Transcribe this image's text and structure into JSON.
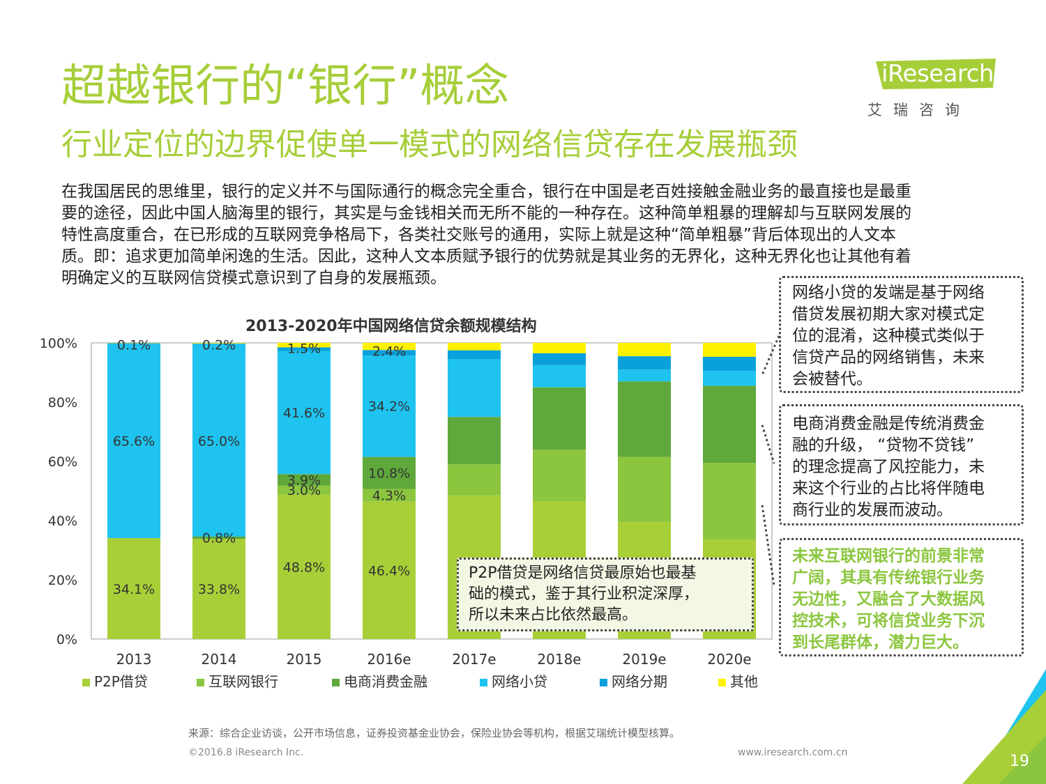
{
  "header": {
    "title": "超越银行的“银行”概念",
    "subtitle": "行业定位的边界促使单一模式的网络信贷存在发展瓶颈",
    "logo_text": "iResearch",
    "logo_cn": "艾瑞咨询"
  },
  "body": {
    "lines": [
      "在我国居民的思维里，银行的定义并不与国际通行的概念完全重合，银行在中国是老百姓接触金融业务的最直接也是最重",
      "要的途径，因此中国人脑海里的银行，其实是与金钱相关而无所不能的一种存在。这种简单粗暴的理解却与互联网发展的",
      "特性高度重合，在已形成的互联网竞争格局下，各类社交账号的通用，实际上就是这种“简单粗暴”背后体现出的人文本",
      "质。即：追求更加简单闲逸的生活。因此，这种人文本质赋予银行的优势就是其业务的无界化，这种无界化也让其他有着",
      "明确定义的互联网信贷模式意识到了自身的发展瓶颈。"
    ]
  },
  "chart_data": {
    "type": "bar",
    "stacked": true,
    "title": "2013-2020年中国网络信贷余额规模结构",
    "categories": [
      "2013",
      "2014",
      "2015",
      "2016e",
      "2017e",
      "2018e",
      "2019e",
      "2020e"
    ],
    "y_ticks": [
      "0%",
      "20%",
      "40%",
      "60%",
      "80%",
      "100%"
    ],
    "ylim": [
      0,
      100
    ],
    "series": [
      {
        "name": "P2P借贷",
        "color": "#a9cf38",
        "values": [
          34.1,
          33.8,
          48.8,
          46.4,
          48.5,
          46.5,
          39.5,
          33.5
        ]
      },
      {
        "name": "互联网银行",
        "color": "#8cc63f",
        "values": [
          0,
          0,
          3.0,
          4.3,
          10.5,
          17.5,
          22.0,
          26.0
        ]
      },
      {
        "name": "电商消费金融",
        "color": "#5fa83b",
        "values": [
          0,
          0.8,
          3.9,
          10.8,
          16.0,
          21.0,
          25.5,
          26.0
        ]
      },
      {
        "name": "网络小贷",
        "color": "#1ec3ef",
        "values": [
          65.6,
          65.0,
          41.6,
          34.2,
          19.5,
          7.5,
          4.0,
          5.0
        ]
      },
      {
        "name": "网络分期",
        "color": "#0aa0dc",
        "values": [
          0.2,
          0.2,
          1.2,
          1.9,
          3.0,
          4.0,
          4.5,
          4.8
        ]
      },
      {
        "name": "其他",
        "color": "#fff200",
        "values": [
          0.1,
          0.2,
          1.5,
          2.4,
          2.5,
          3.5,
          4.5,
          4.7
        ]
      }
    ],
    "data_labels": [
      {
        "cat": 0,
        "text": "34.1%",
        "y": 17
      },
      {
        "cat": 0,
        "text": "65.6%",
        "y": 67
      },
      {
        "cat": 0,
        "text": "0.1%",
        "y": 99.4
      },
      {
        "cat": 1,
        "text": "33.8%",
        "y": 17
      },
      {
        "cat": 1,
        "text": "0.8%",
        "y": 34.2
      },
      {
        "cat": 1,
        "text": "65.0%",
        "y": 67
      },
      {
        "cat": 1,
        "text": "0.2%",
        "y": 99.4
      },
      {
        "cat": 2,
        "text": "48.8%",
        "y": 24.4
      },
      {
        "cat": 2,
        "text": "3.0%",
        "y": 50.3
      },
      {
        "cat": 2,
        "text": "3.9%",
        "y": 53.8
      },
      {
        "cat": 2,
        "text": "41.6%",
        "y": 76.5
      },
      {
        "cat": 2,
        "text": "1.5%",
        "y": 98.2
      },
      {
        "cat": 3,
        "text": "46.4%",
        "y": 23.2
      },
      {
        "cat": 3,
        "text": "4.3%",
        "y": 48.6
      },
      {
        "cat": 3,
        "text": "10.8%",
        "y": 56.1
      },
      {
        "cat": 3,
        "text": "34.2%",
        "y": 78.7
      },
      {
        "cat": 3,
        "text": "2.4%",
        "y": 97.3
      }
    ]
  },
  "callouts": {
    "p2p": [
      "P2P借贷是网络信贷最原始也最基",
      "础的模式，鉴于其行业积淀深厚，",
      "所以未来占比依然最高。"
    ],
    "xiaodai": [
      "网络小贷的发端是基于网络",
      "借贷发展初期大家对模式定",
      "位的混淆，这种模式类似于",
      "信贷产品的网络销售，未来",
      "会被替代。"
    ],
    "dianshang": [
      "电商消费金融是传统消费金",
      "融的升级， “贷物不贷钱”",
      "的理念提高了风控能力，未",
      "来这个行业的占比将伴随电",
      "商行业的发展而波动。"
    ],
    "bank": [
      "未来互联网银行的前景非常",
      "广阔，其具有传统银行业务",
      "无边性，又融合了大数据风",
      "控技术，可将信贷业务下沉",
      "到长尾群体，潜力巨大。"
    ]
  },
  "footer": {
    "source": "来源：综合企业访谈，公开市场信息，证券投资基金业协会，保险业协会等机构，根据艾瑞统计模型核算。",
    "copyright": "©2016.8 iResearch Inc.",
    "website": "www.iresearch.com.cn",
    "page": "19"
  },
  "colors": {
    "accent_green": "#a6ce39",
    "bank_callout_text": "#8cc63f",
    "corner_green": "#a9cf38",
    "corner_blue": "#1ec3ef"
  }
}
